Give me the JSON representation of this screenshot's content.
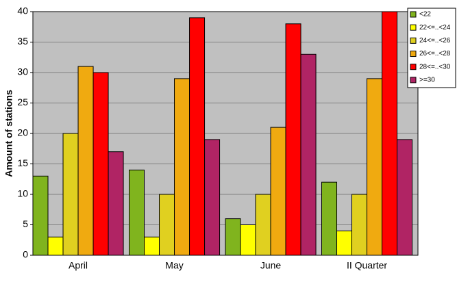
{
  "chart_data": {
    "type": "bar",
    "y_label": "Amount of stations",
    "categories": [
      "April",
      "May",
      "June",
      "II Quarter"
    ],
    "series": [
      {
        "name": "<22",
        "color": "#80b41e",
        "values": [
          13,
          14,
          6,
          12
        ]
      },
      {
        "name": "22<=..<24",
        "color": "#ffff00",
        "values": [
          3,
          3,
          5,
          4
        ]
      },
      {
        "name": "24<=..<26",
        "color": "#e0d020",
        "values": [
          20,
          10,
          10,
          10
        ]
      },
      {
        "name": "26<=..<28",
        "color": "#f0aa10",
        "values": [
          31,
          29,
          21,
          29
        ]
      },
      {
        "name": "28<=..<30",
        "color": "#ff0000",
        "values": [
          30,
          39,
          38,
          40
        ]
      },
      {
        "name": ">=30",
        "color": "#b02464",
        "values": [
          17,
          19,
          33,
          19
        ]
      }
    ],
    "ylim": [
      0,
      40
    ],
    "yticks": [
      0,
      5,
      10,
      15,
      20,
      25,
      30,
      35,
      40
    ],
    "grid": true,
    "legend": "top-right"
  }
}
